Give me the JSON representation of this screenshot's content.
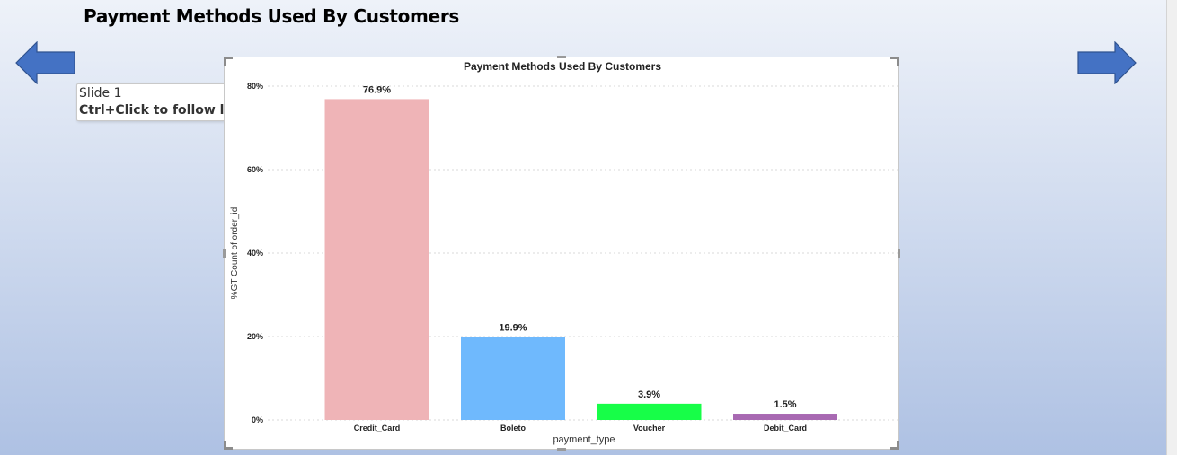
{
  "slide": {
    "title": "Payment Methods Used By Customers"
  },
  "tooltip": {
    "line1": "Slide 1",
    "line2": "Ctrl+Click to follow link"
  },
  "nav": {
    "prev_icon": "left-arrow-icon",
    "next_icon": "right-arrow-icon",
    "arrow_color": "#4472c4"
  },
  "chart_data": {
    "type": "bar",
    "title": "Payment Methods Used By Customers",
    "xlabel": "payment_type",
    "ylabel": "%GT Count of order_id",
    "categories": [
      "Credit_Card",
      "Boleto",
      "Voucher",
      "Debit_Card"
    ],
    "values": [
      76.9,
      19.9,
      3.9,
      1.5
    ],
    "data_labels": [
      "76.9%",
      "19.9%",
      "3.9%",
      "1.5%"
    ],
    "colors": [
      "#efb4b7",
      "#6fb9fd",
      "#17fe48",
      "#a869b2"
    ],
    "ylim": [
      0,
      80
    ],
    "yticks": [
      0,
      20,
      40,
      60,
      80
    ],
    "ytick_labels": [
      "0%",
      "20%",
      "40%",
      "60%",
      "80%"
    ],
    "grid": true,
    "legend": "none"
  }
}
